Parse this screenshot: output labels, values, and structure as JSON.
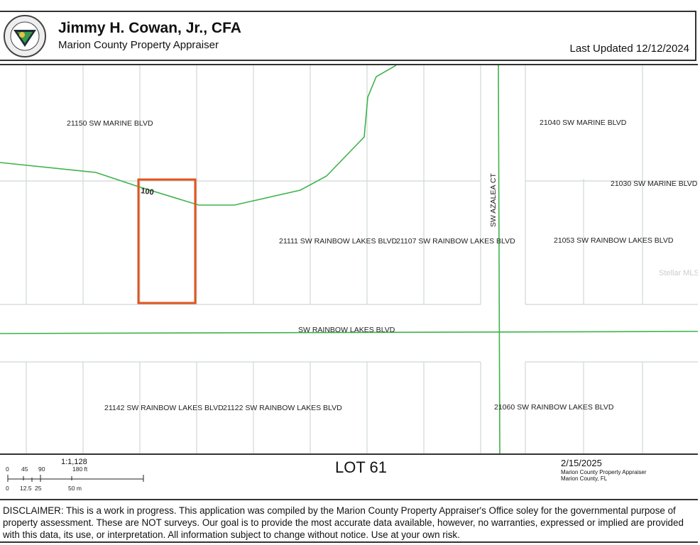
{
  "header": {
    "logo_text": "PROPERTY APPRAISER - MARION COUNTY, FLORIDA",
    "name": "Jimmy H. Cowan, Jr., CFA",
    "office": "Marion County Property Appraiser",
    "last_updated": "Last Updated 12/12/2024"
  },
  "map": {
    "contour_label": "100",
    "parcel_labels": [
      "21150 SW MARINE BLVD",
      "21040 SW MARINE BLVD",
      "21030 SW MARINE BLVD",
      "21111 SW RAINBOW LAKES BLVD",
      "21107 SW RAINBOW LAKES BLVD",
      "21053 SW RAINBOW LAKES BLVD",
      "21142 SW RAINBOW LAKES BLVD",
      "21122 SW RAINBOW LAKES BLVD",
      "21060 SW RAINBOW LAKES BLVD"
    ],
    "road_labels": [
      "SW RAINBOW LAKES BLVD",
      "SW AZALEA CT"
    ],
    "watermark": "Stellar MLS",
    "colors": {
      "road": "#3db34a",
      "parcel_lines": "#cfd8d4",
      "subject": "#e0541e"
    }
  },
  "footer": {
    "scale": "1:1,128",
    "ft_ticks": [
      "0",
      "45",
      "90",
      "180 ft"
    ],
    "m_ticks": [
      "0",
      "12.5",
      "25",
      "50 m"
    ],
    "title": "LOT 61",
    "date": "2/15/2025",
    "org_line1": "Marion County Property Appraiser",
    "org_line2": "Marion County, FL"
  },
  "disclaimer": "DISCLAIMER: This is a work in progress. This application was compiled by the Marion County Property Appraiser's Office soley for the governmental purpose of property assessment. These are NOT surveys. Our goal is to provide the most accurate data available, however, no warranties, expressed or implied are provided with this data, its use, or interpretation. All information subject to change without notice. Use at your own risk."
}
